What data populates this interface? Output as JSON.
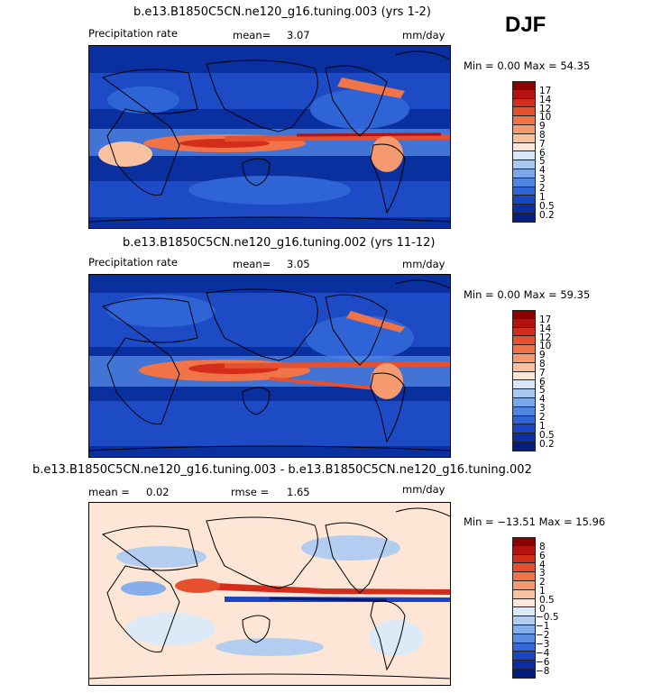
{
  "season": "DJF",
  "panels": [
    {
      "title": "b.e13.B1850C5CN.ne120_g16.tuning.003 (yrs 1-2)",
      "label_left": "Precipitation rate",
      "stat_label": "mean=",
      "stat_value": "3.07",
      "units": "mm/day",
      "minmax": "Min =   0.00 Max =  54.35",
      "colorbar_labels": [
        "17",
        "14",
        "12",
        "10",
        "9",
        "8",
        "7",
        "6",
        "5",
        "4",
        "3",
        "2",
        "1",
        "0.5",
        "0.2"
      ],
      "colorbar_colors": [
        "#8b0000",
        "#b3120f",
        "#d42d1b",
        "#e6502f",
        "#f07448",
        "#f59a6e",
        "#f9c1a0",
        "#fde6d6",
        "#d6e6f7",
        "#a9c8f0",
        "#7aa7ea",
        "#4f86e2",
        "#2f64d6",
        "#1a46c2",
        "#0c2fa3",
        "#041d7e"
      ]
    },
    {
      "title": "b.e13.B1850C5CN.ne120_g16.tuning.002 (yrs 11-12)",
      "label_left": "Precipitation rate",
      "stat_label": "mean=",
      "stat_value": "3.05",
      "units": "mm/day",
      "minmax": "Min =   0.00 Max =  59.35",
      "colorbar_labels": [
        "17",
        "14",
        "12",
        "10",
        "9",
        "8",
        "7",
        "6",
        "5",
        "4",
        "3",
        "2",
        "1",
        "0.5",
        "0.2"
      ],
      "colorbar_colors": [
        "#8b0000",
        "#b3120f",
        "#d42d1b",
        "#e6502f",
        "#f07448",
        "#f59a6e",
        "#f9c1a0",
        "#fde6d6",
        "#d6e6f7",
        "#a9c8f0",
        "#7aa7ea",
        "#4f86e2",
        "#2f64d6",
        "#1a46c2",
        "#0c2fa3",
        "#041d7e"
      ]
    },
    {
      "title": "b.e13.B1850C5CN.ne120_g16.tuning.003 - b.e13.B1850C5CN.ne120_g16.tuning.002",
      "label_left": "mean =",
      "label_left_value": "0.02",
      "stat_label": "rmse =",
      "stat_value": "1.65",
      "units": "mm/day",
      "minmax": "Min = −13.51 Max =  15.96",
      "colorbar_labels": [
        "8",
        "6",
        "4",
        "3",
        "2",
        "1",
        "0.5",
        "0",
        "−0.5",
        "−1",
        "−2",
        "−3",
        "−4",
        "−6",
        "−8"
      ],
      "colorbar_colors": [
        "#8b0000",
        "#b3120f",
        "#d42d1b",
        "#e6502f",
        "#f07448",
        "#f59a6e",
        "#f9c1a0",
        "#fde6d6",
        "#dce9f7",
        "#b3cdf0",
        "#85aeea",
        "#5a8ce2",
        "#3567d6",
        "#1b45c2",
        "#0c2da3",
        "#041b7e"
      ]
    }
  ]
}
